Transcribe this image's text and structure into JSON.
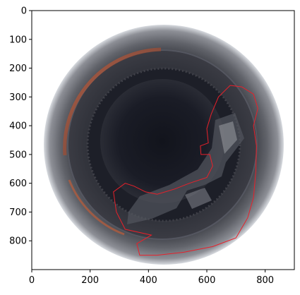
{
  "figure": {
    "image_subject": "bottle-top-view-with-defect-outline",
    "outline_color": "#e8202a",
    "axes": {
      "x_range": [
        0,
        900
      ],
      "y_range": [
        900,
        0
      ],
      "x_ticks": [
        "0",
        "200",
        "400",
        "600",
        "800"
      ],
      "y_ticks": [
        "0",
        "100",
        "200",
        "300",
        "400",
        "500",
        "600",
        "700",
        "800"
      ]
    }
  },
  "chart_data": {
    "type": "image",
    "xlim": [
      0,
      900
    ],
    "ylim": [
      900,
      0
    ],
    "x_ticks": [
      0,
      200,
      400,
      600,
      800
    ],
    "y_ticks": [
      0,
      100,
      200,
      300,
      400,
      500,
      600,
      700,
      800
    ],
    "annotation_polygon": [
      [
        680,
        260
      ],
      [
        720,
        265
      ],
      [
        760,
        290
      ],
      [
        775,
        340
      ],
      [
        760,
        400
      ],
      [
        770,
        470
      ],
      [
        768,
        560
      ],
      [
        760,
        650
      ],
      [
        740,
        720
      ],
      [
        700,
        790
      ],
      [
        620,
        820
      ],
      [
        520,
        840
      ],
      [
        430,
        850
      ],
      [
        370,
        850
      ],
      [
        360,
        810
      ],
      [
        410,
        780
      ],
      [
        320,
        760
      ],
      [
        290,
        700
      ],
      [
        280,
        630
      ],
      [
        320,
        600
      ],
      [
        350,
        610
      ],
      [
        390,
        630
      ],
      [
        430,
        638
      ],
      [
        490,
        620
      ],
      [
        540,
        600
      ],
      [
        600,
        580
      ],
      [
        620,
        540
      ],
      [
        610,
        500
      ],
      [
        580,
        500
      ],
      [
        578,
        470
      ],
      [
        605,
        460
      ],
      [
        600,
        410
      ],
      [
        615,
        360
      ],
      [
        640,
        300
      ],
      [
        680,
        260
      ]
    ]
  }
}
